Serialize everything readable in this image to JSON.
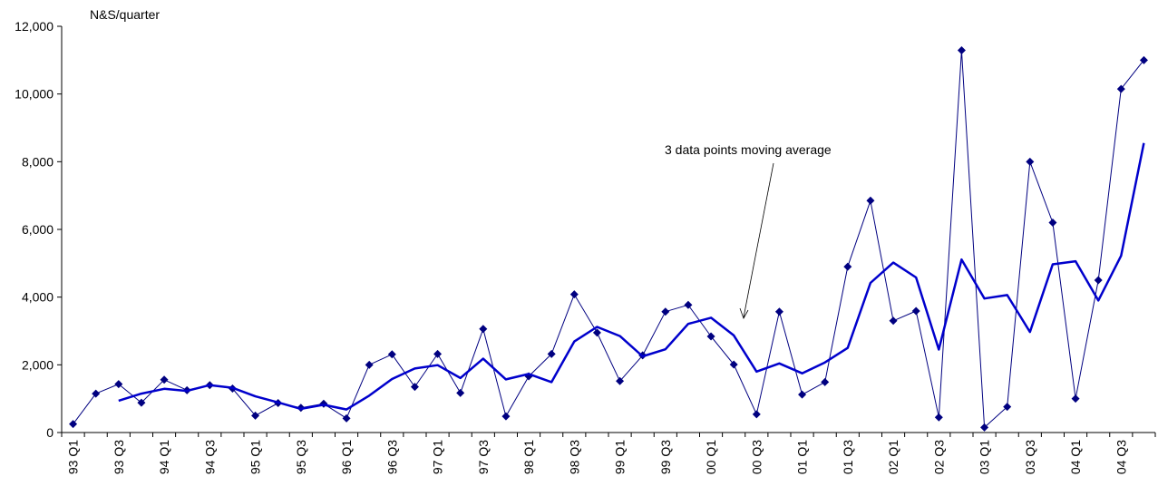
{
  "chart_data": {
    "type": "line",
    "ylabel": "N&S/quarter",
    "ylim": [
      0,
      12000
    ],
    "yticks": [
      0,
      2000,
      4000,
      6000,
      8000,
      10000,
      12000
    ],
    "ytick_labels": [
      "0",
      "2,000",
      "4,000",
      "6,000",
      "8,000",
      "10,000",
      "12,000"
    ],
    "grid": false,
    "categories": [
      "93 Q1",
      "93 Q2",
      "93 Q3",
      "93 Q4",
      "94 Q1",
      "94 Q2",
      "94 Q3",
      "94 Q4",
      "95 Q1",
      "95 Q2",
      "95 Q3",
      "95 Q4",
      "96 Q1",
      "96 Q2",
      "96 Q3",
      "96 Q4",
      "97 Q1",
      "97 Q2",
      "97 Q3",
      "97 Q4",
      "98 Q1",
      "98 Q2",
      "98 Q3",
      "98 Q4",
      "99 Q1",
      "99 Q2",
      "99 Q3",
      "99 Q4",
      "00 Q1",
      "00 Q2",
      "00 Q3",
      "00 Q4",
      "01 Q1",
      "01 Q2",
      "01 Q3",
      "01 Q4",
      "02 Q1",
      "02 Q2",
      "02 Q3",
      "02 Q4",
      "03 Q1",
      "03 Q2",
      "03 Q3",
      "03 Q4",
      "04 Q1",
      "04 Q2",
      "04 Q3",
      "04 Q4"
    ],
    "xtick_labels": [
      "93 Q1",
      "93 Q3",
      "94 Q1",
      "94 Q3",
      "95 Q1",
      "95 Q3",
      "96 Q1",
      "96 Q3",
      "97 Q1",
      "97 Q3",
      "98 Q1",
      "98 Q3",
      "99 Q1",
      "99 Q3",
      "00 Q1",
      "00 Q3",
      "01 Q1",
      "01 Q3",
      "02 Q1",
      "02 Q3",
      "03 Q1",
      "03 Q3",
      "04 Q1",
      "04 Q3"
    ],
    "series": [
      {
        "style": "marker-line",
        "color": "#000080",
        "values": [
          250,
          1150,
          1430,
          880,
          1560,
          1250,
          1400,
          1300,
          500,
          870,
          730,
          850,
          420,
          2000,
          2310,
          1350,
          2320,
          1170,
          3060,
          480,
          1660,
          2320,
          4080,
          2950,
          1520,
          2280,
          3570,
          3770,
          2840,
          2010,
          540,
          3570,
          1120,
          1490,
          4900,
          6850,
          3300,
          3590,
          450,
          11290,
          150,
          760,
          8000,
          6200,
          1000,
          4500,
          10150,
          11000
        ]
      },
      {
        "style": "line",
        "color": "#0000cc",
        "values": [
          null,
          null,
          940,
          1150,
          1290,
          1230,
          1400,
          1320,
          1070,
          890,
          700,
          820,
          680,
          1090,
          1580,
          1890,
          1990,
          1610,
          2180,
          1570,
          1730,
          1490,
          2690,
          3120,
          2850,
          2250,
          2460,
          3210,
          3390,
          2870,
          1800,
          2040,
          1750,
          2070,
          2500,
          4420,
          5020,
          4580,
          2450,
          5110,
          3960,
          4060,
          2970,
          4970,
          5060,
          3900,
          5220,
          8550
        ]
      }
    ],
    "annotations": [
      {
        "text": "3 data points moving average"
      }
    ]
  }
}
